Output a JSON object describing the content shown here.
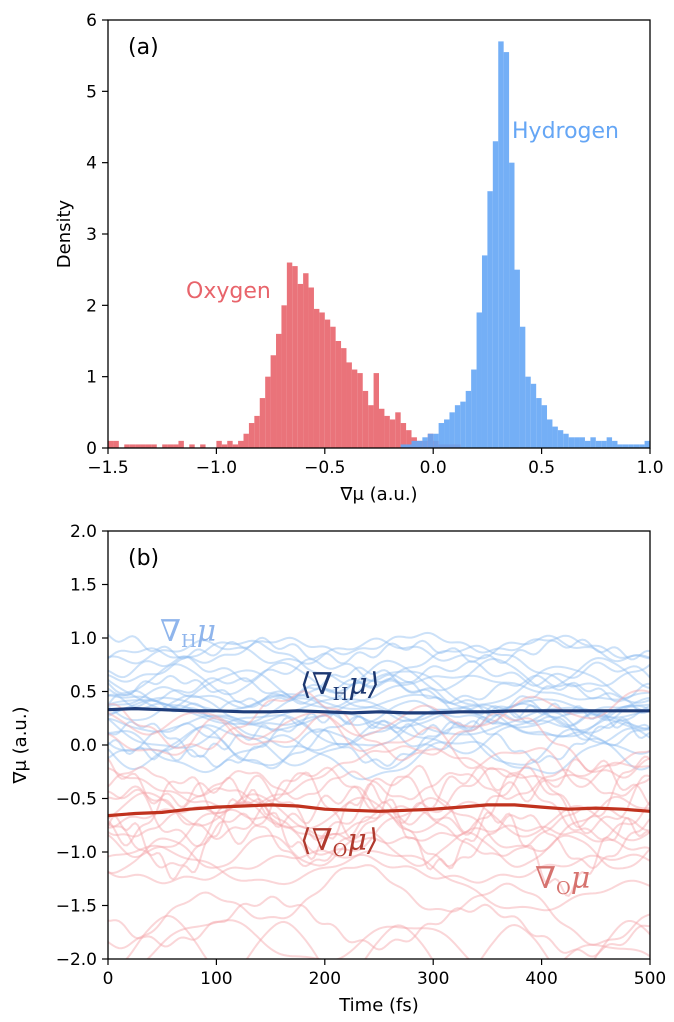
{
  "chart_data": [
    {
      "type": "bar",
      "panel_label": "(a)",
      "xlabel": "∇μ (a.u.)",
      "ylabel": "Density",
      "xlim": [
        -1.5,
        1.0
      ],
      "ylim": [
        0,
        6
      ],
      "xticks": [
        "-1.5",
        "-1.0",
        "-0.5",
        "0.0",
        "0.5",
        "1.0"
      ],
      "yticks": [
        "0",
        "1",
        "2",
        "3",
        "4",
        "5",
        "6"
      ],
      "bin_width": 0.025,
      "series": [
        {
          "name": "Oxygen",
          "color": "#e8646b",
          "x": [
            -1.5,
            -1.475,
            -1.45,
            -1.425,
            -1.4,
            -1.375,
            -1.35,
            -1.325,
            -1.3,
            -1.275,
            -1.25,
            -1.225,
            -1.2,
            -1.175,
            -1.15,
            -1.125,
            -1.1,
            -1.075,
            -1.05,
            -1.025,
            -1.0,
            -0.975,
            -0.95,
            -0.925,
            -0.9,
            -0.875,
            -0.85,
            -0.825,
            -0.8,
            -0.775,
            -0.75,
            -0.725,
            -0.7,
            -0.675,
            -0.65,
            -0.625,
            -0.6,
            -0.575,
            -0.55,
            -0.525,
            -0.5,
            -0.475,
            -0.45,
            -0.425,
            -0.4,
            -0.375,
            -0.35,
            -0.325,
            -0.3,
            -0.275,
            -0.25,
            -0.225,
            -0.2,
            -0.175,
            -0.15,
            -0.125,
            -0.1,
            -0.075,
            -0.05,
            -0.025,
            0.0,
            0.025,
            0.05,
            0.075,
            0.1
          ],
          "values": [
            0.1,
            0.1,
            0,
            0.05,
            0.05,
            0.05,
            0.05,
            0.05,
            0.05,
            0,
            0.05,
            0.05,
            0.05,
            0.1,
            0,
            0.05,
            0,
            0.05,
            0,
            0,
            0.1,
            0.05,
            0.1,
            0.05,
            0.1,
            0.2,
            0.35,
            0.45,
            0.7,
            1.0,
            1.3,
            1.6,
            2.0,
            2.6,
            2.55,
            2.3,
            2.45,
            2.25,
            1.95,
            1.9,
            1.8,
            1.7,
            1.5,
            1.4,
            1.2,
            1.1,
            1.05,
            0.8,
            0.6,
            1.05,
            0.55,
            0.45,
            0.4,
            0.5,
            0.35,
            0.25,
            0.15,
            0.1,
            0.1,
            0.2,
            0.1,
            0.05,
            0.05,
            0.05,
            0.05
          ]
        },
        {
          "name": "Hydrogen",
          "color": "#65a6f5",
          "x": [
            -0.15,
            -0.125,
            -0.1,
            -0.075,
            -0.05,
            -0.025,
            0.0,
            0.025,
            0.05,
            0.075,
            0.1,
            0.125,
            0.15,
            0.175,
            0.2,
            0.225,
            0.25,
            0.275,
            0.3,
            0.325,
            0.35,
            0.375,
            0.4,
            0.425,
            0.45,
            0.475,
            0.5,
            0.525,
            0.55,
            0.575,
            0.6,
            0.625,
            0.65,
            0.675,
            0.7,
            0.725,
            0.75,
            0.775,
            0.8,
            0.825,
            0.85,
            0.875,
            0.9,
            0.925,
            0.95,
            0.975
          ],
          "values": [
            0.05,
            0.05,
            0.1,
            0.1,
            0.15,
            0.2,
            0.2,
            0.35,
            0.4,
            0.5,
            0.6,
            0.65,
            0.8,
            1.1,
            1.9,
            2.7,
            3.6,
            4.3,
            5.7,
            5.55,
            4.0,
            2.5,
            1.7,
            1.0,
            0.9,
            0.7,
            0.6,
            0.4,
            0.3,
            0.25,
            0.2,
            0.15,
            0.15,
            0.15,
            0.1,
            0.15,
            0.1,
            0.1,
            0.15,
            0.1,
            0.05,
            0.05,
            0.05,
            0.05,
            0.05,
            0.1
          ]
        }
      ]
    },
    {
      "type": "line",
      "panel_label": "(b)",
      "xlabel": "Time (fs)",
      "ylabel": "∇μ (a.u.)",
      "xlim": [
        0,
        500
      ],
      "ylim": [
        -2.0,
        2.0
      ],
      "xticks": [
        "0",
        "100",
        "200",
        "300",
        "400",
        "500"
      ],
      "yticks": [
        "-2.0",
        "-1.5",
        "-1.0",
        "-0.5",
        "0.0",
        "0.5",
        "1.0",
        "1.5",
        "2.0"
      ],
      "annotations": {
        "h_individual": "∇",
        "h_individual_sub": "H",
        "h_mean_open": "⟨∇",
        "h_mean_sub": "H",
        "h_mean_close": "μ⟩",
        "o_individual": "∇",
        "o_individual_sub": "O",
        "o_mean_open": "⟨∇",
        "o_mean_sub": "O",
        "o_mean_close": "μ⟩",
        "mu": "μ"
      },
      "series": [
        {
          "name": "⟨∇Hμ⟩",
          "color": "#1f3d7a",
          "x": [
            0,
            25,
            50,
            75,
            100,
            125,
            150,
            175,
            200,
            225,
            250,
            275,
            300,
            325,
            350,
            375,
            400,
            425,
            450,
            475,
            500
          ],
          "values": [
            0.33,
            0.34,
            0.33,
            0.32,
            0.32,
            0.31,
            0.31,
            0.32,
            0.31,
            0.3,
            0.31,
            0.3,
            0.3,
            0.31,
            0.31,
            0.32,
            0.32,
            0.32,
            0.32,
            0.32,
            0.32
          ]
        },
        {
          "name": "⟨∇Oμ⟩",
          "color": "#c0321e",
          "x": [
            0,
            25,
            50,
            75,
            100,
            125,
            150,
            175,
            200,
            225,
            250,
            275,
            300,
            325,
            350,
            375,
            400,
            425,
            450,
            475,
            500
          ],
          "values": [
            -0.66,
            -0.64,
            -0.63,
            -0.6,
            -0.58,
            -0.57,
            -0.56,
            -0.57,
            -0.6,
            -0.61,
            -0.62,
            -0.61,
            -0.6,
            -0.58,
            -0.56,
            -0.56,
            -0.58,
            -0.6,
            -0.59,
            -0.6,
            -0.62
          ]
        }
      ],
      "trace_groups": [
        {
          "name": "∇Hμ",
          "color": "#8fbdf0",
          "baselines": [
            0.95,
            0.88,
            0.82,
            0.76,
            0.7,
            0.64,
            0.58,
            0.52,
            0.48,
            0.44,
            0.4,
            0.36,
            0.33,
            0.3,
            0.27,
            0.24,
            0.21,
            0.18,
            0.14,
            0.1,
            0.06,
            0.02,
            -0.03,
            -0.08
          ],
          "amplitude": 0.12
        },
        {
          "name": "∇Oμ",
          "color": "#f4a3a8",
          "baselines": [
            0.3,
            0.1,
            -0.1,
            -0.25,
            -0.35,
            -0.45,
            -0.52,
            -0.58,
            -0.63,
            -0.68,
            -0.72,
            -0.77,
            -0.82,
            -0.88,
            -0.95,
            -1.05,
            -1.15,
            -1.3,
            -1.5,
            -1.7,
            -1.85,
            -1.95
          ],
          "amplitude": 0.2
        }
      ]
    }
  ]
}
